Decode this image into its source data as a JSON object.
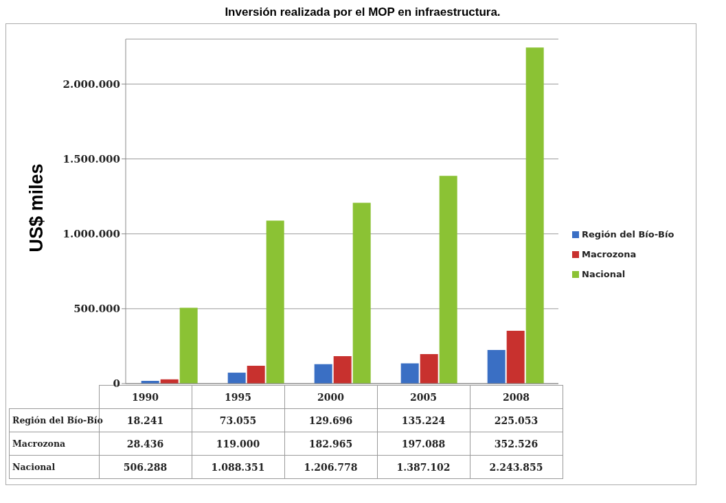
{
  "chart_data": {
    "type": "bar",
    "title": "Inversión realizada por el MOP en infraestructura.",
    "ylabel": "US$ miles",
    "categories": [
      "1990",
      "1995",
      "2000",
      "2005",
      "2008"
    ],
    "series": [
      {
        "name": "Región del Bío-Bío",
        "color": "#3a6fc4",
        "values": [
          18241,
          73055,
          129696,
          135224,
          225053
        ],
        "value_labels": [
          "18.241",
          "73.055",
          "129.696",
          "135.224",
          "225.053"
        ]
      },
      {
        "name": "Macrozona",
        "color": "#c8312e",
        "values": [
          28436,
          119000,
          182965,
          197088,
          352526
        ],
        "value_labels": [
          "28.436",
          "119.000",
          "182.965",
          "197.088",
          "352.526"
        ]
      },
      {
        "name": "Nacional",
        "color": "#8bc234",
        "values": [
          506288,
          1088351,
          1206778,
          1387102,
          2243855
        ],
        "value_labels": [
          "506.288",
          "1.088.351",
          "1.206.778",
          "1.387.102",
          "2.243.855"
        ]
      }
    ],
    "ylim": [
      0,
      2300000
    ],
    "yticks": [
      0,
      {
        "value": 500000,
        "label": "500.000"
      },
      {
        "value": 1000000,
        "label": "1.000.000"
      },
      {
        "value": 1500000,
        "label": "1.500.000"
      },
      {
        "value": 2000000,
        "label": "2.000.000"
      }
    ],
    "grid": "y",
    "legend": "right"
  }
}
